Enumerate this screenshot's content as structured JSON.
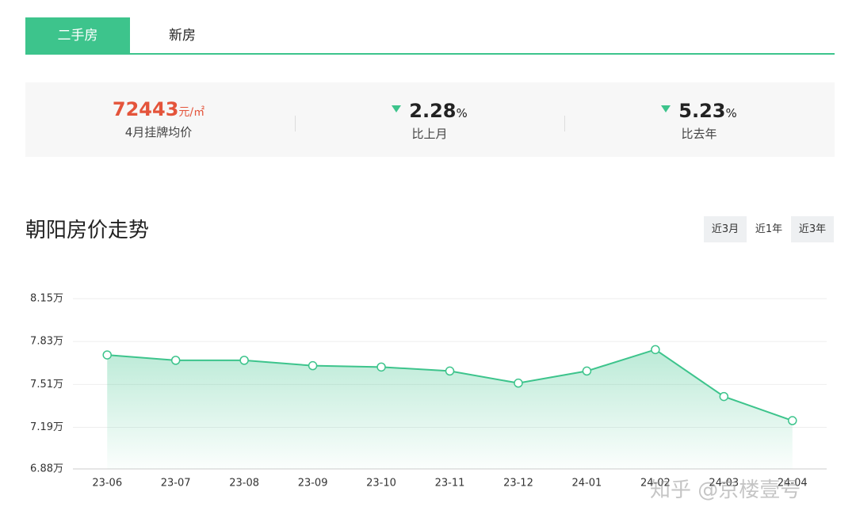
{
  "tabs": [
    "二手房",
    "新房"
  ],
  "summary": {
    "price": 72443,
    "price_unit": "元/㎡",
    "price_label": "4月挂牌均价",
    "mom": 2.28,
    "mom_unit": "%",
    "mom_label": "比上月",
    "yoy": 5.23,
    "yoy_unit": "%",
    "yoy_label": "比去年"
  },
  "section_title": "朝阳房价走势",
  "ranges": [
    "近3月",
    "近1年",
    "近3年"
  ],
  "chart_data": {
    "type": "line",
    "categories": [
      "23-06",
      "23-07",
      "23-08",
      "23-09",
      "23-10",
      "23-11",
      "23-12",
      "24-01",
      "24-02",
      "24-03",
      "24-04"
    ],
    "values": [
      7.73,
      7.69,
      7.69,
      7.65,
      7.64,
      7.61,
      7.52,
      7.61,
      7.77,
      7.42,
      7.24
    ],
    "color": "#3dc48c",
    "ylim": [
      6.88,
      8.15
    ],
    "yticks": [
      {
        "value": 6.88,
        "label": "6.88万"
      },
      {
        "value": 7.19,
        "label": "7.19万"
      },
      {
        "value": 7.51,
        "label": "7.51万"
      },
      {
        "value": 7.83,
        "label": "7.83万"
      },
      {
        "value": 8.15,
        "label": "8.15万"
      }
    ],
    "grid": true
  },
  "watermark": "知乎 @京楼壹号"
}
